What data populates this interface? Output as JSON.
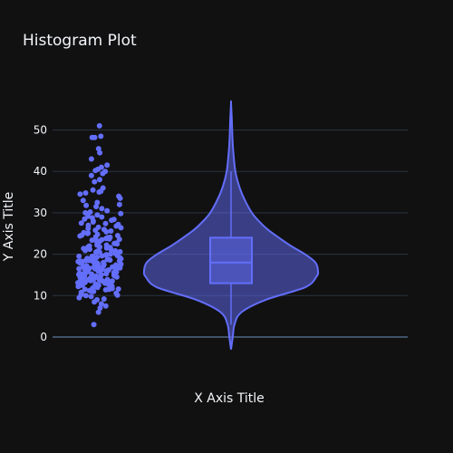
{
  "chart_data": {
    "type": "violin",
    "title": "Histogram Plot",
    "xlabel": "X Axis Title",
    "ylabel": "Y Axis Title",
    "ylim": [
      -3,
      57
    ],
    "yticks": [
      0,
      10,
      20,
      30,
      40,
      50
    ],
    "grid": true,
    "theme": {
      "background": "#111111",
      "grid": "#283442",
      "zeroline": "#506784",
      "accent": "#636efa"
    },
    "series": [
      {
        "type": "violin",
        "box_visible": true,
        "points": "all",
        "box": {
          "min": 3,
          "q1": 13,
          "median": 18,
          "q3": 24,
          "max": 40
        },
        "data_range": [
          -3,
          56.5
        ],
        "density_profile": [
          [
            -3,
            0.0
          ],
          [
            0,
            0.02
          ],
          [
            3,
            0.04
          ],
          [
            6,
            0.12
          ],
          [
            9,
            0.4
          ],
          [
            12,
            0.85
          ],
          [
            14.5,
            0.98
          ],
          [
            16,
            1.0
          ],
          [
            18,
            0.97
          ],
          [
            20,
            0.85
          ],
          [
            22,
            0.69
          ],
          [
            24,
            0.55
          ],
          [
            26,
            0.42
          ],
          [
            28,
            0.32
          ],
          [
            30,
            0.24
          ],
          [
            33,
            0.16
          ],
          [
            36,
            0.1
          ],
          [
            40,
            0.05
          ],
          [
            45,
            0.025
          ],
          [
            49,
            0.015
          ],
          [
            53,
            0.008
          ],
          [
            56.5,
            0.0
          ]
        ],
        "points_y": [
          51,
          48.5,
          48.2,
          48.2,
          45.5,
          44.5,
          43,
          41.5,
          41,
          40.5,
          40.2,
          40,
          39.5,
          39,
          38,
          37.5,
          36,
          35.5,
          35.2,
          35,
          34.8,
          34.5,
          34,
          33.5,
          33,
          32.5,
          32,
          31.8,
          31.5,
          31,
          30.5,
          30.2,
          30,
          29.8,
          29.5,
          29.2,
          29,
          28.8,
          28.5,
          28.2,
          28,
          27.8,
          27.5,
          27.2,
          27,
          26.8,
          26.5,
          26.2,
          26,
          25.8,
          25.6,
          25.4,
          25.2,
          25,
          24.8,
          24.6,
          24.4,
          24.2,
          24,
          23.8,
          23.6,
          23.4,
          23.2,
          23,
          22.8,
          22.6,
          22.4,
          22.2,
          22,
          21.8,
          21.6,
          21.4,
          21.2,
          21,
          20.8,
          20.6,
          20.4,
          20.2,
          20,
          19.8,
          19.6,
          19.5,
          19.4,
          19.2,
          19,
          18.9,
          18.8,
          18.6,
          18.5,
          18.4,
          18.2,
          18.1,
          18,
          17.9,
          17.8,
          17.6,
          17.5,
          17.4,
          17.2,
          17.1,
          17,
          16.9,
          16.8,
          16.6,
          16.5,
          16.4,
          16.2,
          16.1,
          16,
          15.9,
          15.8,
          15.6,
          15.5,
          15.4,
          15.2,
          15.1,
          15,
          14.9,
          14.8,
          14.6,
          14.5,
          14.4,
          14.2,
          14.1,
          14,
          13.9,
          13.8,
          13.6,
          13.5,
          13.4,
          13.2,
          13.1,
          13,
          12.9,
          12.8,
          12.6,
          12.5,
          12.4,
          12.2,
          12.1,
          12,
          11.9,
          11.8,
          11.6,
          11.5,
          11.4,
          11.2,
          11,
          10.8,
          10.6,
          10.4,
          10.2,
          10,
          9.8,
          9.5,
          9.2,
          9,
          8.5,
          8,
          7.5,
          7,
          6,
          3,
          22.5,
          21.5,
          20.5,
          19.7,
          18.7,
          17.7,
          16.7,
          15.7,
          14.7,
          13.7,
          12.7,
          11.7,
          24.5,
          23.5,
          26.4,
          27.4,
          28.4,
          19.3,
          18.3,
          17.3,
          16.3,
          15.3,
          14.3,
          13.3,
          12.3,
          21.7,
          20.7,
          22.7,
          23.7,
          17.9,
          16.9,
          15.9,
          18.9,
          19.9,
          14.9,
          13.9,
          20.9,
          17.2,
          16.2,
          15.2,
          18.2,
          19.2,
          14.2,
          13.2,
          12.2,
          21.2,
          22.2,
          25.1,
          24.1,
          11.1,
          10.1,
          17.5,
          16.5,
          15.5,
          18.5,
          19.5,
          20.5,
          14.5,
          13.5,
          12.5,
          11.5
        ]
      }
    ]
  }
}
